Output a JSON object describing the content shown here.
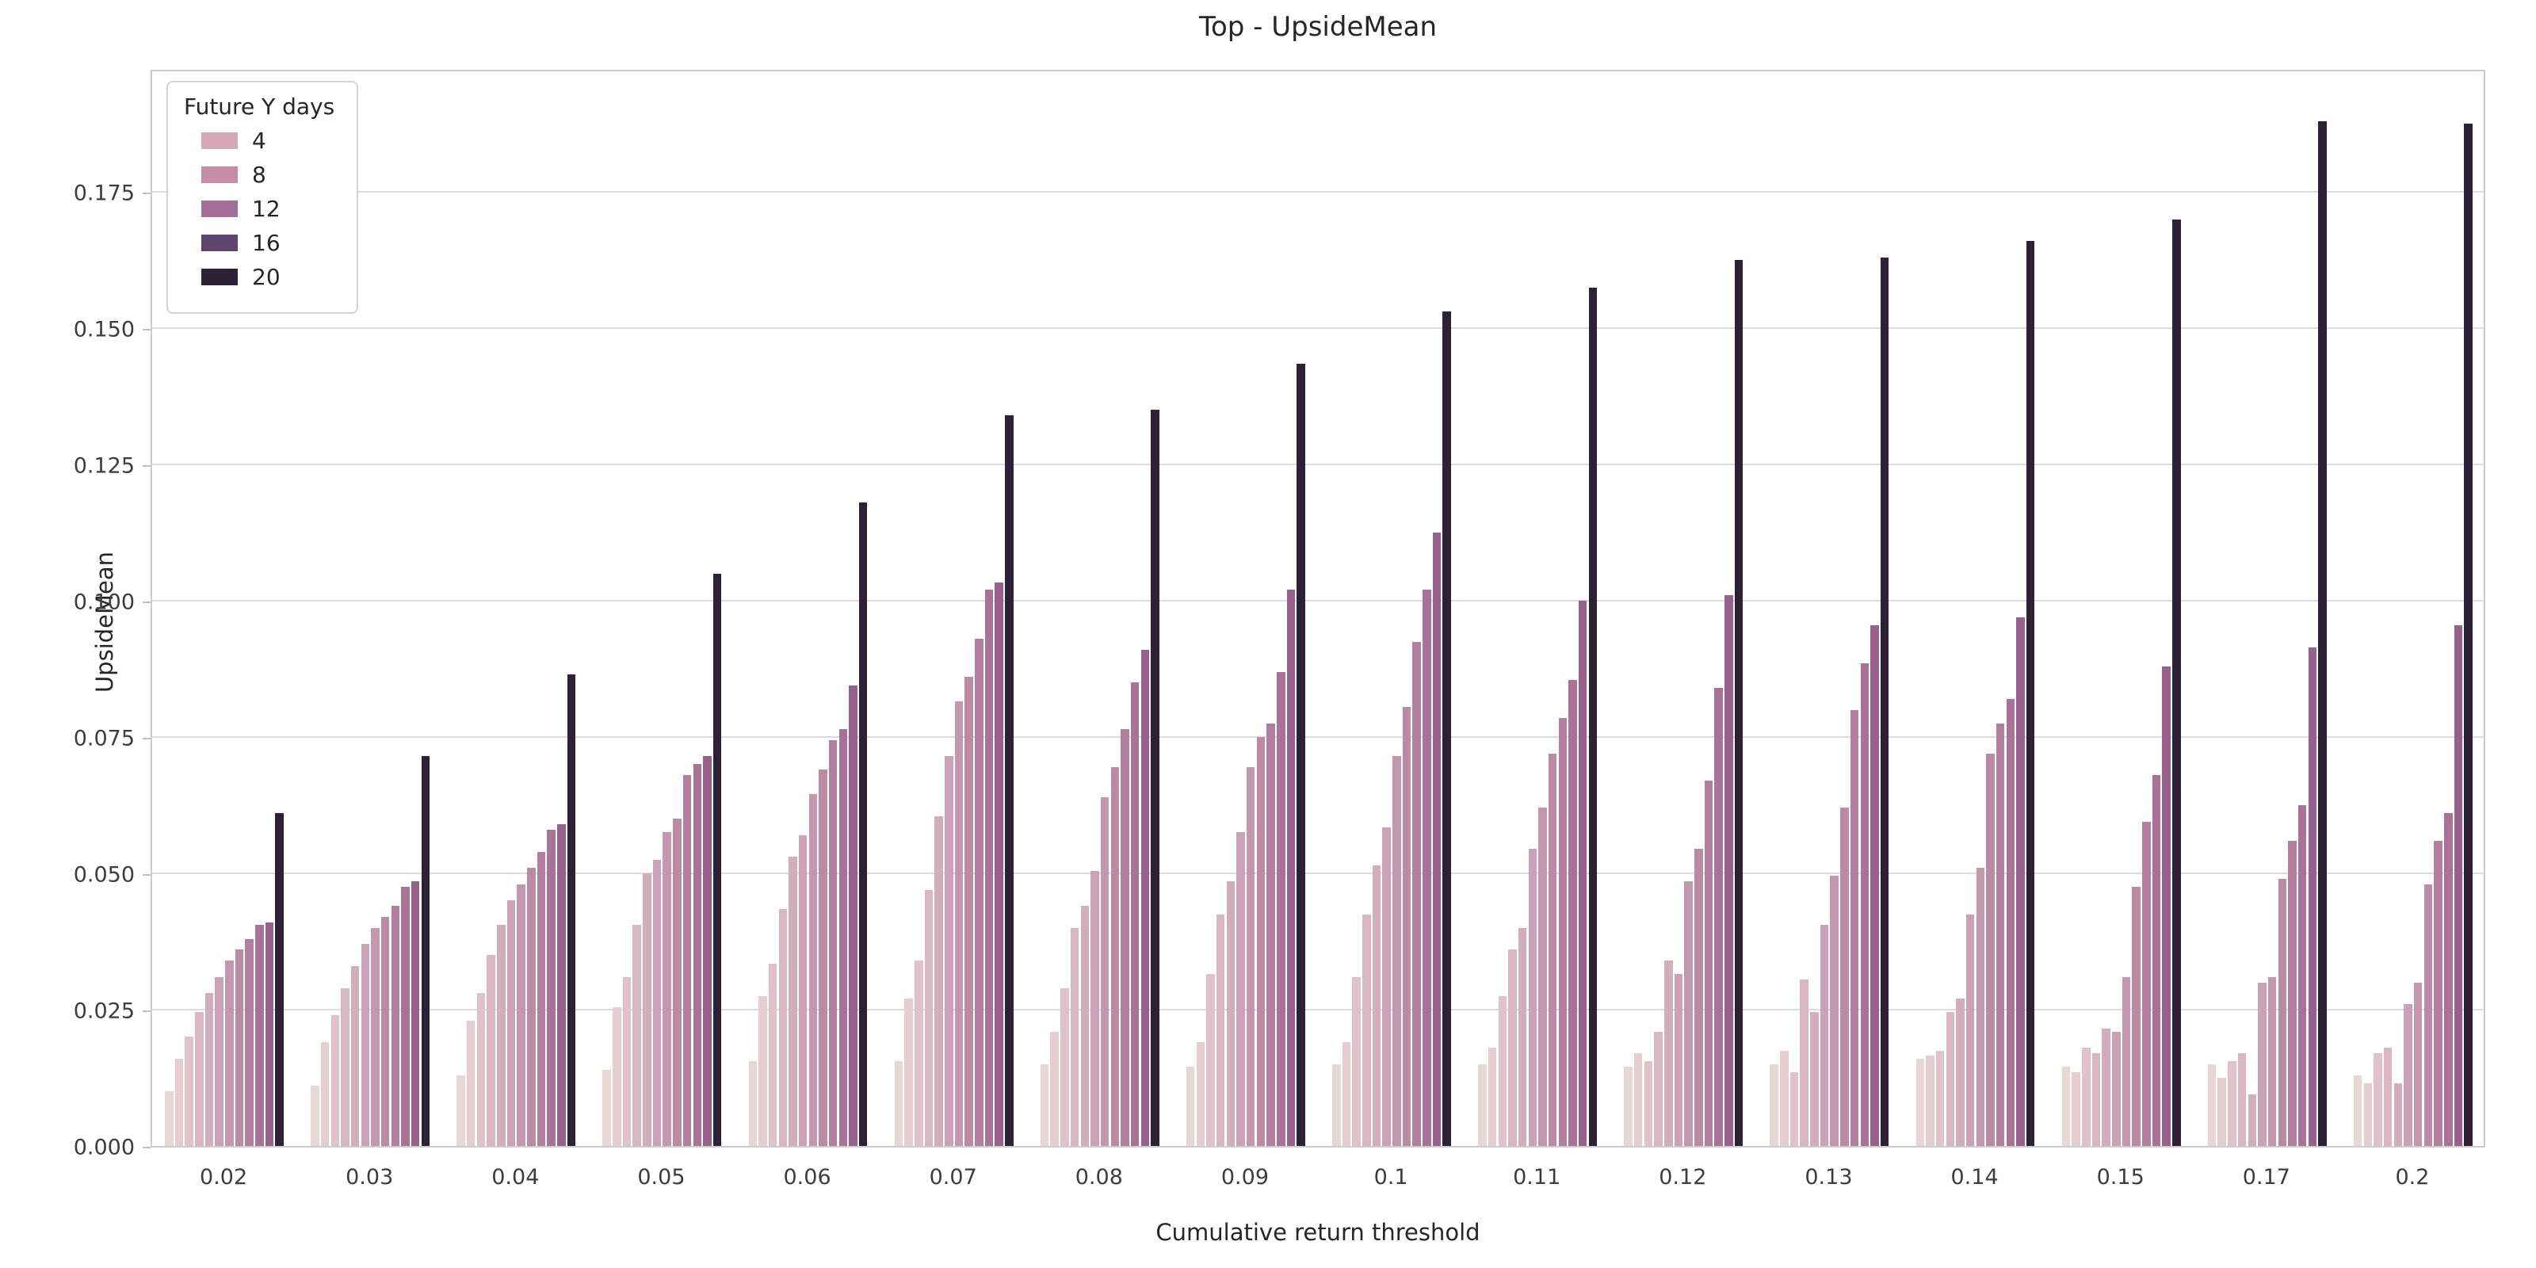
{
  "figure": {
    "title": "Top - UpsideMean",
    "background_color": "#ffffff",
    "grid_color": "#dcdcdc",
    "spine_color": "#cccccc",
    "text_color": "#262626",
    "tick_text_color": "#3d3d3d"
  },
  "axes": {
    "xlabel": "Cumulative return threshold",
    "ylabel": "UpsideMean",
    "ytick_labels": [
      "0.000",
      "0.025",
      "0.050",
      "0.075",
      "0.100",
      "0.125",
      "0.150",
      "0.175"
    ],
    "ytick_values": [
      0.0,
      0.025,
      0.05,
      0.075,
      0.1,
      0.125,
      0.15,
      0.175
    ]
  },
  "legend": {
    "title": "Future Y days",
    "entries": [
      {
        "label": "4",
        "color": "#d6a9b8"
      },
      {
        "label": "8",
        "color": "#c68da6"
      },
      {
        "label": "12",
        "color": "#a56f9b"
      },
      {
        "label": "16",
        "color": "#5f4470"
      },
      {
        "label": "20",
        "color": "#2d2137"
      }
    ]
  },
  "chart_data": {
    "type": "bar",
    "title": "Top - UpsideMean",
    "xlabel": "Cumulative return threshold",
    "ylabel": "UpsideMean",
    "hue_legend_title": "Future Y days",
    "hue_legend_labels": [
      "4",
      "8",
      "12",
      "16",
      "20"
    ],
    "categories": [
      "0.02",
      "0.03",
      "0.04",
      "0.05",
      "0.06",
      "0.07",
      "0.08",
      "0.09",
      "0.1",
      "0.11",
      "0.12",
      "0.13",
      "0.14",
      "0.15",
      "0.17",
      "0.2"
    ],
    "ylim": [
      0,
      0.1977
    ],
    "grid": "horizontal gridlines every 0.025, legend upper-left",
    "bars_per_group": 12,
    "series": [
      {
        "name": "group-bar-01",
        "color": "#e9d7d7",
        "values": [
          0.01,
          0.011,
          0.013,
          0.014,
          0.0155,
          0.0155,
          0.015,
          0.0145,
          0.015,
          0.015,
          0.0145,
          0.015,
          0.016,
          0.0145,
          0.015,
          0.013
        ]
      },
      {
        "name": "group-bar-02",
        "color": "#e5cdd2",
        "values": [
          0.016,
          0.019,
          0.023,
          0.0255,
          0.0275,
          0.027,
          0.021,
          0.019,
          0.019,
          0.018,
          0.017,
          0.0175,
          0.0165,
          0.0135,
          0.0125,
          0.0115
        ]
      },
      {
        "name": "group-bar-03",
        "color": "#dfc2cb",
        "values": [
          0.02,
          0.024,
          0.028,
          0.031,
          0.0335,
          0.034,
          0.029,
          0.0315,
          0.031,
          0.0275,
          0.0155,
          0.0135,
          0.0175,
          0.018,
          0.0155,
          0.017
        ]
      },
      {
        "name": "group-bar-04",
        "color": "#d8b7c3",
        "values": [
          0.0245,
          0.029,
          0.035,
          0.0405,
          0.0435,
          0.047,
          0.04,
          0.0425,
          0.0425,
          0.036,
          0.021,
          0.0305,
          0.0245,
          0.017,
          0.017,
          0.018
        ]
      },
      {
        "name": "group-bar-05",
        "color": "#d2adbc",
        "values": [
          0.028,
          0.033,
          0.0405,
          0.05,
          0.053,
          0.0605,
          0.044,
          0.0485,
          0.0515,
          0.04,
          0.034,
          0.0245,
          0.027,
          0.0215,
          0.0095,
          0.0115
        ]
      },
      {
        "name": "group-bar-06",
        "color": "#cba2b5",
        "values": [
          0.031,
          0.037,
          0.045,
          0.0525,
          0.057,
          0.0715,
          0.0505,
          0.0575,
          0.0585,
          0.0545,
          0.0315,
          0.0405,
          0.0425,
          0.021,
          0.03,
          0.026
        ]
      },
      {
        "name": "group-bar-07",
        "color": "#c397ae",
        "values": [
          0.034,
          0.04,
          0.048,
          0.0575,
          0.0645,
          0.0815,
          0.064,
          0.0695,
          0.0715,
          0.062,
          0.0485,
          0.0495,
          0.051,
          0.031,
          0.031,
          0.03
        ]
      },
      {
        "name": "group-bar-08",
        "color": "#bb8ba6",
        "values": [
          0.036,
          0.042,
          0.051,
          0.06,
          0.069,
          0.086,
          0.0695,
          0.075,
          0.0805,
          0.072,
          0.0545,
          0.062,
          0.072,
          0.0475,
          0.049,
          0.048
        ]
      },
      {
        "name": "group-bar-09",
        "color": "#b27f9f",
        "values": [
          0.038,
          0.044,
          0.054,
          0.068,
          0.0745,
          0.093,
          0.0765,
          0.0775,
          0.0925,
          0.0785,
          0.067,
          0.08,
          0.0775,
          0.0595,
          0.056,
          0.056
        ]
      },
      {
        "name": "group-bar-10",
        "color": "#a87397",
        "values": [
          0.0405,
          0.0475,
          0.058,
          0.07,
          0.0765,
          0.102,
          0.085,
          0.087,
          0.102,
          0.0855,
          0.084,
          0.0885,
          0.082,
          0.068,
          0.0625,
          0.061
        ]
      },
      {
        "name": "group-bar-11",
        "color": "#96618c",
        "values": [
          0.041,
          0.0485,
          0.059,
          0.0715,
          0.0845,
          0.1033,
          0.091,
          0.102,
          0.1125,
          0.1,
          0.101,
          0.0955,
          0.097,
          0.088,
          0.0915,
          0.0955
        ]
      },
      {
        "name": "group-bar-12",
        "color": "#2d2137",
        "values": [
          0.061,
          0.0715,
          0.0865,
          0.105,
          0.118,
          0.134,
          0.135,
          0.1435,
          0.153,
          0.1575,
          0.1625,
          0.163,
          0.166,
          0.17,
          0.188,
          0.1875
        ]
      }
    ]
  }
}
